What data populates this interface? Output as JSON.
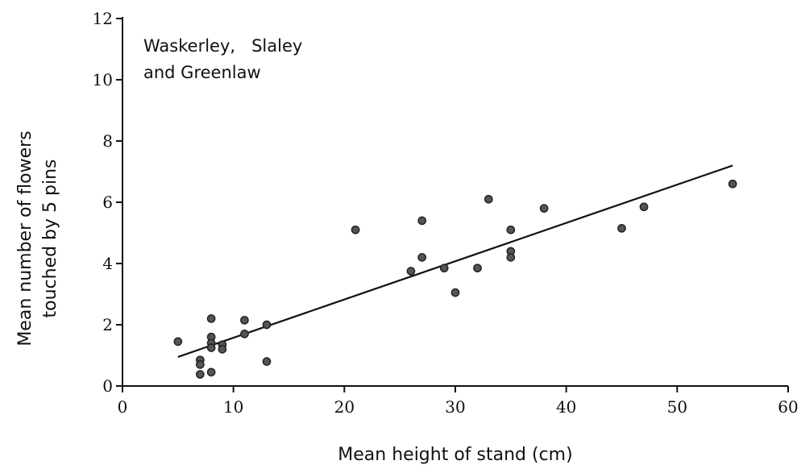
{
  "chart_data": {
    "type": "scatter",
    "xlabel": "Mean height of stand (cm)",
    "ylabel_lines": [
      "Mean number of flowers",
      "touched by 5 pins"
    ],
    "annotation_lines": [
      "Waskerley,   Slaley",
      "and Greenlaw"
    ],
    "xlim": [
      0,
      60
    ],
    "ylim": [
      0,
      12
    ],
    "x_ticks": [
      0,
      10,
      20,
      30,
      40,
      50,
      60
    ],
    "y_ticks": [
      0,
      2,
      4,
      6,
      8,
      10,
      12
    ],
    "grid": false,
    "points": [
      {
        "x": 5,
        "y": 1.45
      },
      {
        "x": 7,
        "y": 0.85
      },
      {
        "x": 7,
        "y": 0.7
      },
      {
        "x": 7,
        "y": 0.38
      },
      {
        "x": 8,
        "y": 2.2
      },
      {
        "x": 8,
        "y": 1.6
      },
      {
        "x": 8,
        "y": 1.4
      },
      {
        "x": 8,
        "y": 1.25
      },
      {
        "x": 8,
        "y": 0.45
      },
      {
        "x": 9,
        "y": 1.35
      },
      {
        "x": 9,
        "y": 1.2
      },
      {
        "x": 11,
        "y": 2.15
      },
      {
        "x": 11,
        "y": 1.7
      },
      {
        "x": 13,
        "y": 2.0
      },
      {
        "x": 13,
        "y": 0.8
      },
      {
        "x": 21,
        "y": 5.1
      },
      {
        "x": 26,
        "y": 3.75
      },
      {
        "x": 27,
        "y": 5.4
      },
      {
        "x": 27,
        "y": 4.2
      },
      {
        "x": 29,
        "y": 3.85
      },
      {
        "x": 30,
        "y": 3.05
      },
      {
        "x": 32,
        "y": 3.85
      },
      {
        "x": 33,
        "y": 6.1
      },
      {
        "x": 35,
        "y": 5.1
      },
      {
        "x": 35,
        "y": 4.4
      },
      {
        "x": 35,
        "y": 4.2
      },
      {
        "x": 38,
        "y": 5.8
      },
      {
        "x": 45,
        "y": 5.15
      },
      {
        "x": 47,
        "y": 5.85
      },
      {
        "x": 55,
        "y": 6.6
      }
    ],
    "trend_line": {
      "x": [
        5,
        55
      ],
      "y": [
        0.95,
        7.2
      ]
    }
  }
}
